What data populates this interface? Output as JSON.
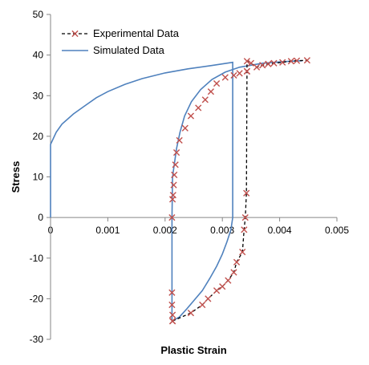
{
  "chart_data": {
    "type": "line",
    "title": "",
    "xlabel": "Plastic Strain",
    "ylabel": "Stress",
    "xlim": [
      0,
      0.005
    ],
    "ylim": [
      -30,
      50
    ],
    "xticks": [
      0,
      0.001,
      0.002,
      0.003,
      0.004,
      0.005
    ],
    "xtick_labels": [
      "0",
      "0.001",
      "0.002",
      "0.003",
      "0.004",
      "0.005"
    ],
    "yticks": [
      -30,
      -20,
      -10,
      0,
      10,
      20,
      30,
      40,
      50
    ],
    "ytick_labels": [
      "-30",
      "-20",
      "-10",
      "0",
      "10",
      "20",
      "30",
      "40",
      "50"
    ],
    "grid": false,
    "legend_position": "top-right",
    "series": [
      {
        "name": "Experimental Data",
        "color": "#000000",
        "marker_color": "#c0504d",
        "line_style": "dashed",
        "marker": "x",
        "points": [
          [
            0.00213,
            -25.5
          ],
          [
            0.00245,
            -23.5
          ],
          [
            0.00265,
            -21.5
          ],
          [
            0.00275,
            -20.0
          ],
          [
            0.0029,
            -18.0
          ],
          [
            0.003,
            -17.0
          ],
          [
            0.0031,
            -15.5
          ],
          [
            0.0032,
            -13.5
          ],
          [
            0.00325,
            -11.0
          ],
          [
            0.00335,
            -8.5
          ],
          [
            0.00338,
            -3.0
          ],
          [
            0.0034,
            0.0
          ],
          [
            0.00342,
            6.0
          ],
          [
            0.00343,
            36.0
          ],
          [
            0.00343,
            38.5
          ],
          [
            0.0035,
            38.0
          ],
          [
            0.0036,
            37.0
          ],
          [
            0.0037,
            37.5
          ],
          [
            0.0038,
            37.8
          ],
          [
            0.0039,
            38.0
          ],
          [
            0.00405,
            38.2
          ],
          [
            0.0042,
            38.5
          ],
          [
            0.0043,
            38.6
          ],
          [
            0.00448,
            38.7
          ]
        ],
        "return_points": [
          [
            0.00343,
            36.0
          ],
          [
            0.0033,
            35.5
          ],
          [
            0.0032,
            35.0
          ],
          [
            0.00305,
            34.5
          ],
          [
            0.0029,
            33.0
          ],
          [
            0.0028,
            31.0
          ],
          [
            0.0027,
            29.0
          ],
          [
            0.00258,
            27.0
          ],
          [
            0.00245,
            25.0
          ],
          [
            0.00235,
            22.0
          ],
          [
            0.00225,
            19.0
          ],
          [
            0.0022,
            16.0
          ],
          [
            0.00218,
            13.0
          ],
          [
            0.00216,
            10.5
          ],
          [
            0.00215,
            8.0
          ],
          [
            0.00214,
            5.5
          ],
          [
            0.00213,
            4.5
          ],
          [
            0.00212,
            0.0
          ],
          [
            0.00212,
            -18.5
          ],
          [
            0.00212,
            -21.5
          ],
          [
            0.00213,
            -24.0
          ],
          [
            0.00213,
            -25.5
          ]
        ]
      },
      {
        "name": "Simulated Data",
        "color": "#4f81bd",
        "line_style": "solid",
        "marker": "none",
        "points": [
          [
            0.0,
            0.0
          ],
          [
            0.0,
            18.0
          ],
          [
            0.0001,
            21.0
          ],
          [
            0.0002,
            23.0
          ],
          [
            0.0004,
            25.5
          ],
          [
            0.0006,
            27.5
          ],
          [
            0.0008,
            29.5
          ],
          [
            0.001,
            31.0
          ],
          [
            0.0013,
            32.8
          ],
          [
            0.0016,
            34.2
          ],
          [
            0.002,
            35.6
          ],
          [
            0.0024,
            36.6
          ],
          [
            0.0028,
            37.4
          ],
          [
            0.00318,
            38.2
          ],
          [
            0.00318,
            0.0
          ],
          [
            0.00315,
            -3.0
          ],
          [
            0.00308,
            -6.0
          ],
          [
            0.003,
            -9.0
          ],
          [
            0.0029,
            -12.0
          ],
          [
            0.00278,
            -15.0
          ],
          [
            0.00265,
            -18.0
          ],
          [
            0.0025,
            -20.5
          ],
          [
            0.00238,
            -22.5
          ],
          [
            0.00225,
            -24.5
          ],
          [
            0.00212,
            -25.5
          ],
          [
            0.00212,
            -24.0
          ],
          [
            0.00212,
            0.0
          ],
          [
            0.00213,
            10.0
          ],
          [
            0.00216,
            13.0
          ],
          [
            0.0022,
            17.0
          ],
          [
            0.00226,
            21.0
          ],
          [
            0.00234,
            25.0
          ],
          [
            0.00246,
            28.5
          ],
          [
            0.00262,
            31.5
          ],
          [
            0.00282,
            34.0
          ],
          [
            0.00305,
            35.8
          ],
          [
            0.0033,
            37.0
          ],
          [
            0.0037,
            38.0
          ],
          [
            0.0041,
            38.4
          ],
          [
            0.0044,
            38.6
          ]
        ]
      }
    ]
  }
}
